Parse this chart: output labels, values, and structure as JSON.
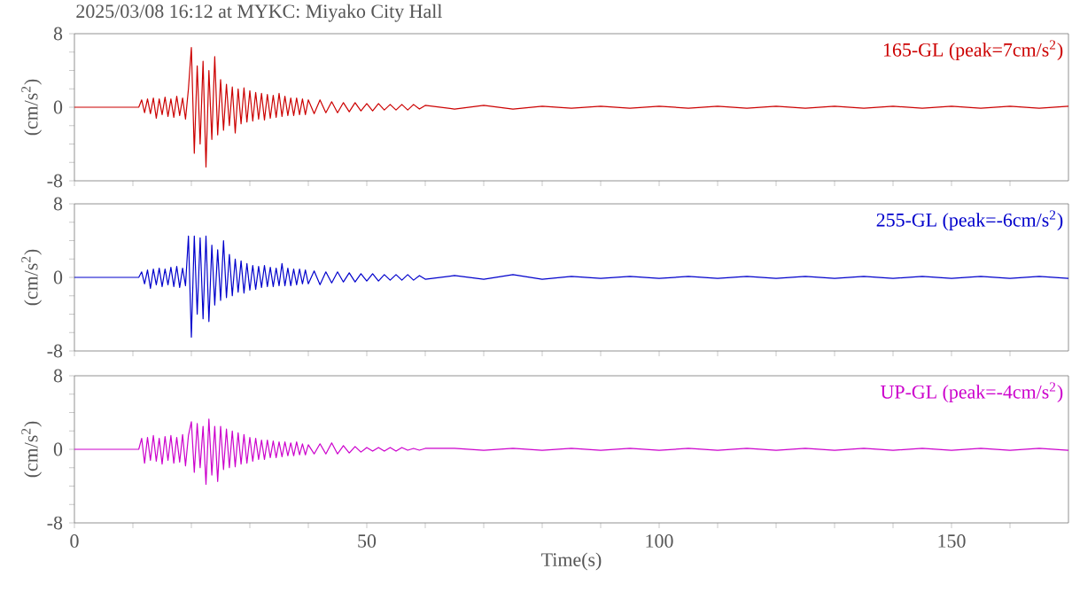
{
  "chart_data": [
    {
      "type": "line",
      "title": "2025/03/08 16:12 at MYKC: Miyako City Hall",
      "ylabel": "(cm/s$^{2}$)",
      "tick_labels": "y",
      "xlim": [
        0,
        170
      ],
      "ylim": [
        -8,
        8
      ],
      "xticks": [
        0,
        {
          "value": 10,
          "label": null
        },
        {
          "value": 20,
          "label": null
        },
        {
          "value": 30,
          "label": null
        },
        {
          "value": 40,
          "label": null
        },
        50,
        {
          "value": 60,
          "label": null
        },
        {
          "value": 70,
          "label": null
        },
        {
          "value": 80,
          "label": null
        },
        {
          "value": 90,
          "label": null
        },
        100,
        {
          "value": 110,
          "label": null
        },
        {
          "value": 120,
          "label": null
        },
        {
          "value": 130,
          "label": null
        },
        {
          "value": 140,
          "label": null
        },
        150,
        {
          "value": 160,
          "label": null
        }
      ],
      "yticks": [
        -8,
        {
          "value": -6,
          "label": null
        },
        {
          "value": -4,
          "label": null
        },
        {
          "value": -2,
          "label": null
        },
        0,
        {
          "value": 2,
          "label": null
        },
        {
          "value": 4,
          "label": null
        },
        {
          "value": 6,
          "label": null
        },
        8
      ],
      "x": [
        0,
        5,
        10,
        11,
        11.5,
        12,
        12.5,
        13,
        13.5,
        14,
        14.5,
        15,
        15.5,
        16,
        16.5,
        17,
        17.5,
        18,
        18.5,
        19,
        19.5,
        20,
        20.5,
        21,
        21.5,
        22,
        22.5,
        23,
        23.5,
        24,
        24.5,
        25,
        25.5,
        26,
        26.5,
        27,
        27.5,
        28,
        28.5,
        29,
        29.5,
        30,
        30.5,
        31,
        31.5,
        32,
        32.5,
        33,
        33.5,
        34,
        34.5,
        35,
        35.5,
        36,
        36.5,
        37,
        37.5,
        38,
        38.5,
        39,
        39.5,
        40,
        41,
        42,
        43,
        44,
        45,
        46,
        47,
        48,
        49,
        50,
        51,
        52,
        53,
        54,
        55,
        56,
        57,
        58,
        59,
        60,
        65,
        70,
        75,
        80,
        85,
        90,
        95,
        100,
        105,
        110,
        115,
        120,
        125,
        130,
        135,
        140,
        145,
        150,
        155,
        160,
        165,
        170
      ],
      "series": [
        {
          "name": "165-GL (peak=7cm/s$^{2}$)",
          "color": "#cc0000",
          "values": [
            0,
            0,
            0,
            0,
            0.8,
            -0.6,
            0.9,
            -0.7,
            1.0,
            -1.2,
            0.9,
            -0.8,
            1.1,
            -1.0,
            0.9,
            -1.1,
            1.2,
            -0.9,
            1.0,
            -1.3,
            2.0,
            6.5,
            -5.0,
            4.5,
            -4.0,
            5.0,
            -6.5,
            4.0,
            -3.5,
            5.5,
            -3.0,
            3.0,
            -2.5,
            2.5,
            -2.0,
            2.2,
            -2.8,
            2.0,
            -1.8,
            2.1,
            -1.6,
            1.8,
            -1.5,
            1.6,
            -1.3,
            1.5,
            -1.4,
            1.4,
            -1.2,
            1.3,
            -1.1,
            1.5,
            -1.0,
            1.2,
            -0.9,
            1.0,
            -0.9,
            1.0,
            -0.8,
            0.9,
            -0.8,
            0.8,
            -0.7,
            0.8,
            -0.6,
            0.6,
            -0.6,
            0.5,
            -0.5,
            0.5,
            -0.4,
            0.4,
            -0.4,
            0.4,
            -0.3,
            0.3,
            -0.3,
            0.3,
            -0.3,
            0.3,
            -0.2,
            0.2,
            -0.2,
            0.2,
            -0.2,
            0.1,
            -0.1,
            0.1,
            -0.1,
            0.1,
            -0.1,
            0.1,
            -0.1,
            0.1,
            -0.1,
            0.1,
            -0.1,
            0.1,
            -0.1,
            0.1,
            -0.1,
            0.1,
            -0.1,
            0.1
          ]
        }
      ]
    },
    {
      "type": "line",
      "ylabel": "(cm/s$^{2}$)",
      "tick_labels": "y",
      "xlim": [
        0,
        170
      ],
      "ylim": [
        -8,
        8
      ],
      "xticks": [
        0,
        {
          "value": 10,
          "label": null
        },
        {
          "value": 20,
          "label": null
        },
        {
          "value": 30,
          "label": null
        },
        {
          "value": 40,
          "label": null
        },
        50,
        {
          "value": 60,
          "label": null
        },
        {
          "value": 70,
          "label": null
        },
        {
          "value": 80,
          "label": null
        },
        {
          "value": 90,
          "label": null
        },
        100,
        {
          "value": 110,
          "label": null
        },
        {
          "value": 120,
          "label": null
        },
        {
          "value": 130,
          "label": null
        },
        {
          "value": 140,
          "label": null
        },
        150,
        {
          "value": 160,
          "label": null
        }
      ],
      "yticks": [
        -8,
        {
          "value": -6,
          "label": null
        },
        {
          "value": -4,
          "label": null
        },
        {
          "value": -2,
          "label": null
        },
        0,
        {
          "value": 2,
          "label": null
        },
        {
          "value": 4,
          "label": null
        },
        {
          "value": 6,
          "label": null
        },
        8
      ],
      "x": [
        0,
        5,
        10,
        11,
        11.5,
        12,
        12.5,
        13,
        13.5,
        14,
        14.5,
        15,
        15.5,
        16,
        16.5,
        17,
        17.5,
        18,
        18.5,
        19,
        19.5,
        20,
        20.5,
        21,
        21.5,
        22,
        22.5,
        23,
        23.5,
        24,
        24.5,
        25,
        25.5,
        26,
        26.5,
        27,
        27.5,
        28,
        28.5,
        29,
        29.5,
        30,
        30.5,
        31,
        31.5,
        32,
        32.5,
        33,
        33.5,
        34,
        34.5,
        35,
        35.5,
        36,
        36.5,
        37,
        37.5,
        38,
        38.5,
        39,
        39.5,
        40,
        41,
        42,
        43,
        44,
        45,
        46,
        47,
        48,
        49,
        50,
        51,
        52,
        53,
        54,
        55,
        56,
        57,
        58,
        59,
        60,
        65,
        70,
        75,
        80,
        85,
        90,
        95,
        100,
        105,
        110,
        115,
        120,
        125,
        130,
        135,
        140,
        145,
        150,
        155,
        160,
        165,
        170
      ],
      "series": [
        {
          "name": "255-GL (peak=-6cm/s$^{2}$)",
          "color": "#0000cc",
          "values": [
            0,
            0,
            0,
            0,
            0.6,
            -0.7,
            0.8,
            -1.2,
            0.9,
            -0.8,
            1.0,
            -1.0,
            0.9,
            -0.8,
            1.1,
            -1.0,
            1.2,
            -1.1,
            1.0,
            -0.9,
            4.5,
            -6.5,
            4.5,
            -4.0,
            4.3,
            -4.5,
            4.5,
            -4.8,
            3.5,
            -3.0,
            3.0,
            -2.5,
            4.0,
            -2.2,
            2.5,
            -2.0,
            2.0,
            -1.6,
            1.8,
            -1.7,
            1.5,
            -1.4,
            1.3,
            -1.3,
            1.2,
            -1.1,
            1.3,
            -1.0,
            1.1,
            -1.0,
            1.0,
            -0.9,
            1.5,
            -0.9,
            1.0,
            -0.9,
            0.9,
            -0.8,
            0.9,
            -0.7,
            0.8,
            -0.7,
            0.7,
            -0.8,
            0.6,
            -0.6,
            0.6,
            -0.5,
            0.5,
            -0.5,
            0.4,
            -0.4,
            0.4,
            -0.4,
            0.3,
            -0.3,
            0.3,
            -0.3,
            0.3,
            -0.3,
            0.2,
            -0.2,
            0.2,
            -0.2,
            0.3,
            -0.2,
            0.1,
            -0.1,
            0.1,
            -0.1,
            0.1,
            -0.1,
            0.1,
            -0.1,
            0.1,
            -0.1,
            0.1,
            -0.1,
            0.1,
            -0.1,
            0.1,
            -0.1,
            0.1,
            -0.1
          ]
        }
      ]
    },
    {
      "type": "line",
      "xlabel": "Time(s)",
      "ylabel": "(cm/s$^{2}$)",
      "xlim": [
        0,
        170
      ],
      "ylim": [
        -8,
        8
      ],
      "xticks": [
        0,
        {
          "value": 10,
          "label": null
        },
        {
          "value": 20,
          "label": null
        },
        {
          "value": 30,
          "label": null
        },
        {
          "value": 40,
          "label": null
        },
        50,
        {
          "value": 60,
          "label": null
        },
        {
          "value": 70,
          "label": null
        },
        {
          "value": 80,
          "label": null
        },
        {
          "value": 90,
          "label": null
        },
        100,
        {
          "value": 110,
          "label": null
        },
        {
          "value": 120,
          "label": null
        },
        {
          "value": 130,
          "label": null
        },
        {
          "value": 140,
          "label": null
        },
        150,
        {
          "value": 160,
          "label": null
        }
      ],
      "yticks": [
        -8,
        {
          "value": -6,
          "label": null
        },
        {
          "value": -4,
          "label": null
        },
        {
          "value": -2,
          "label": null
        },
        0,
        {
          "value": 2,
          "label": null
        },
        {
          "value": 4,
          "label": null
        },
        {
          "value": 6,
          "label": null
        },
        8
      ],
      "x": [
        0,
        5,
        10,
        11,
        11.5,
        12,
        12.5,
        13,
        13.5,
        14,
        14.5,
        15,
        15.5,
        16,
        16.5,
        17,
        17.5,
        18,
        18.5,
        19,
        19.5,
        20,
        20.5,
        21,
        21.5,
        22,
        22.5,
        23,
        23.5,
        24,
        24.5,
        25,
        25.5,
        26,
        26.5,
        27,
        27.5,
        28,
        28.5,
        29,
        29.5,
        30,
        30.5,
        31,
        31.5,
        32,
        32.5,
        33,
        33.5,
        34,
        34.5,
        35,
        35.5,
        36,
        36.5,
        37,
        37.5,
        38,
        38.5,
        39,
        39.5,
        40,
        41,
        42,
        43,
        44,
        45,
        46,
        47,
        48,
        49,
        50,
        51,
        52,
        53,
        54,
        55,
        56,
        57,
        58,
        59,
        60,
        65,
        70,
        75,
        80,
        85,
        90,
        95,
        100,
        105,
        110,
        115,
        120,
        125,
        130,
        135,
        140,
        145,
        150,
        155,
        160,
        165,
        170
      ],
      "series": [
        {
          "name": "UP-GL (peak=-4cm/s$^{2}$)",
          "color": "#cc00cc",
          "values": [
            0,
            0,
            0,
            0,
            1.2,
            -1.5,
            1.3,
            -1.2,
            1.5,
            -1.3,
            1.2,
            -1.6,
            1.4,
            -1.2,
            1.5,
            -1.5,
            1.3,
            -1.4,
            1.6,
            -1.8,
            1.5,
            3.0,
            -2.5,
            2.8,
            -2.0,
            2.5,
            -3.8,
            3.3,
            -2.8,
            2.5,
            -3.5,
            2.5,
            -2.2,
            2.2,
            -2.0,
            2.0,
            -1.9,
            1.8,
            -1.6,
            1.6,
            -1.5,
            1.3,
            -1.3,
            1.2,
            -1.1,
            1.0,
            -1.1,
            1.0,
            -0.9,
            0.9,
            -0.9,
            0.8,
            -0.8,
            0.8,
            -0.7,
            0.7,
            -0.7,
            0.8,
            -0.6,
            0.6,
            -0.6,
            0.5,
            -0.5,
            0.6,
            -0.5,
            0.7,
            -0.5,
            0.4,
            -0.4,
            0.3,
            -0.3,
            0.2,
            -0.2,
            0.2,
            -0.2,
            0.2,
            -0.2,
            0.2,
            -0.1,
            0.1,
            -0.1,
            0.1,
            0.1,
            -0.1,
            0.1,
            -0.1,
            0.1,
            -0.1,
            0.1,
            -0.1,
            0.1,
            -0.1,
            0.1,
            -0.1,
            0.1,
            -0.1,
            0.1,
            -0.1,
            0.1,
            -0.1,
            0.1,
            -0.1,
            0.1,
            -0.1
          ]
        }
      ]
    }
  ]
}
